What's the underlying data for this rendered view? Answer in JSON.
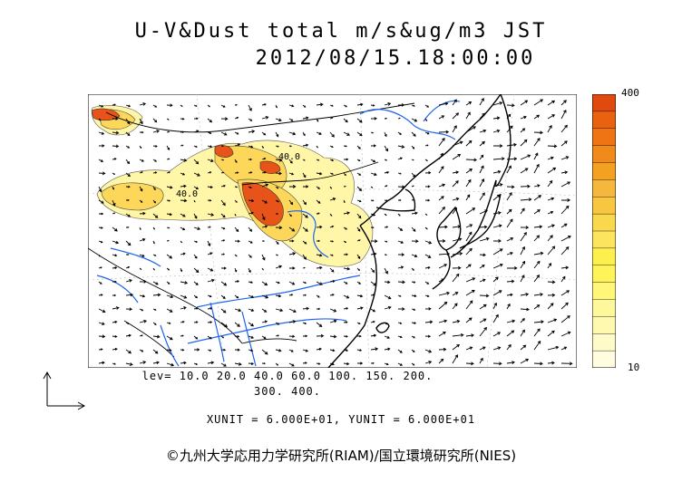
{
  "title_line1": "U-V&Dust total m/s&ug/m3 JST",
  "title_line2": "2012/08/15.18:00:00",
  "contour_levels_line1": "lev= 10.0 20.0 40.0 60.0 100. 150. 200.",
  "contour_levels_line2": "300. 400.",
  "units_line": "XUNIT = 6.000E+01, YUNIT = 6.000E+01",
  "credit": "©九州大学応用力学研究所(RIAM)/国立環境研究所(NIES)",
  "map_labels": [
    "40.0",
    "40.0"
  ],
  "colorbar": {
    "max_label": "400",
    "min_label": "10",
    "colors": [
      "#e04a0f",
      "#e8620f",
      "#ee7414",
      "#f08a1a",
      "#f4a020",
      "#f6b83c",
      "#f8c640",
      "#fad84e",
      "#fce45e",
      "#fdef4e",
      "#fff35a",
      "#fff67a",
      "#fff89a",
      "#fff9b0",
      "#fffbc8",
      "#fffce0"
    ]
  },
  "colors": {
    "heavy_dust": "#e8531a",
    "moderate_dust": "#f6b83c",
    "light_dust": "#fff6a8",
    "rivers": "#1e64f0",
    "coastline": "#000000"
  }
}
